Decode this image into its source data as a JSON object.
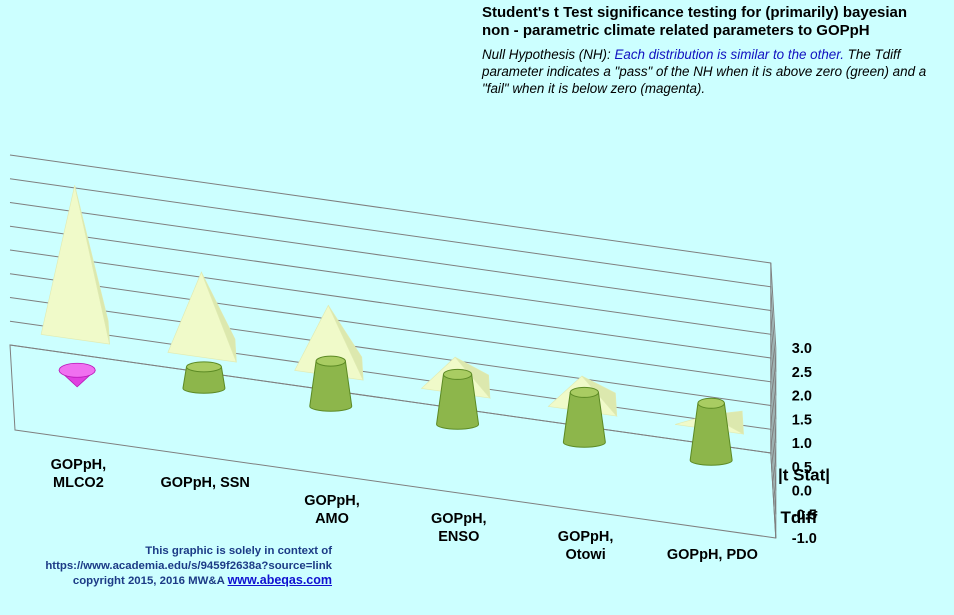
{
  "title_lines": [
    "Student's t Test significance testing for (primarily) bayesian",
    "non - parametric climate related parameters to GOPpH"
  ],
  "subtitle": {
    "prefix": "Null Hypothesis (NH):  ",
    "nh_text": "Each distribution is similar to the other.",
    "rest": "  The Tdiff parameter indicates a \"pass\"  of the NH when it is above zero (green) and a \"fail\" when  it is below zero (magenta)."
  },
  "credit": {
    "line1": "This graphic is solely in context of",
    "line2": "https://www.academia.edu/s/9459f2638a?source=link",
    "line3": "copyright 2015, 2016   MW&A ",
    "link": "www.abeqas.com"
  },
  "colors": {
    "background": "#ccffff",
    "pyramid": "#f0fac9",
    "cylinder": "#8db64b",
    "negative_cone": "#e040e0",
    "grid": "#7f7f7f",
    "credit_text": "#1c3b86"
  },
  "chart_data": {
    "type": "3d-column",
    "categories": [
      [
        "GOPpH,",
        "MLCO2"
      ],
      [
        "GOPpH, SSN"
      ],
      [
        "GOPpH,",
        "AMO"
      ],
      [
        "GOPpH,",
        "ENSO"
      ],
      [
        "GOPpH,",
        "Otowi"
      ],
      [
        "GOPpH, PDO"
      ]
    ],
    "series": [
      {
        "name": "|t Stat|",
        "shape": "pyramid",
        "values": [
          3.0,
          1.55,
          1.23,
          0.52,
          0.5,
          0.06
        ]
      },
      {
        "name": "Tdiff",
        "shape": "cylinder",
        "values": [
          -0.35,
          0.45,
          0.95,
          1.05,
          1.05,
          1.2
        ]
      }
    ],
    "zlim": [
      -1.0,
      3.0
    ],
    "ztick_step": 0.5,
    "ztick_labels": [
      "3.0",
      "2.5",
      "2.0",
      "1.5",
      "1.0",
      "0.5",
      "0.0",
      "-0.5",
      "-1.0"
    ],
    "gridlines": true,
    "legend": "none"
  }
}
